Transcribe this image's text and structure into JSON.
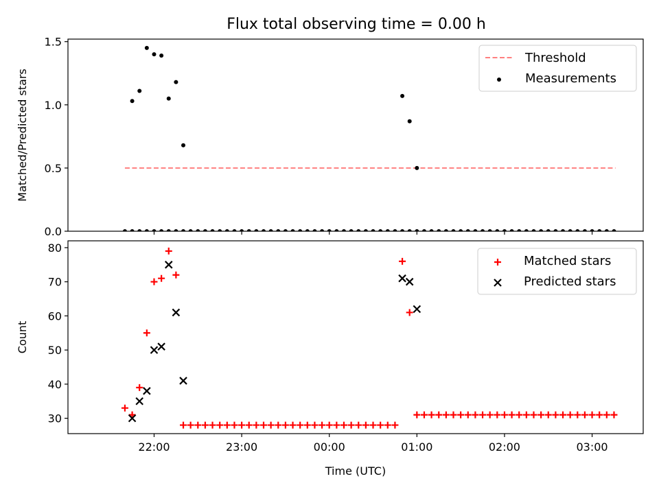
{
  "figure_title": "Flux total observing time = 0.00 h",
  "chart_data": [
    {
      "type": "scatter",
      "title": "Flux total observing time = 0.00 h",
      "xlabel": "",
      "ylabel": "Matched/Predicted stars",
      "ylim": [
        0.0,
        1.52
      ],
      "yticks": [
        "0.0",
        "0.5",
        "1.0",
        "1.5"
      ],
      "legend_position": "upper-right",
      "series": [
        {
          "name": "Threshold",
          "style": "dashed-line",
          "color": "#ff7f7f",
          "x": [
            "21:40",
            "03:16"
          ],
          "y": [
            0.5,
            0.5
          ]
        },
        {
          "name": "Measurements",
          "style": "dot",
          "color": "#000000",
          "x": [
            "21:40",
            "21:45",
            "21:50",
            "21:55",
            "22:00",
            "22:05",
            "22:10",
            "22:15",
            "22:20",
            "22:25",
            "22:30",
            "22:35",
            "22:40",
            "22:45",
            "22:50",
            "22:55",
            "23:00",
            "23:05",
            "23:10",
            "23:15",
            "23:20",
            "23:25",
            "23:30",
            "23:35",
            "23:40",
            "23:45",
            "23:50",
            "23:55",
            "00:00",
            "00:05",
            "00:10",
            "00:15",
            "00:20",
            "00:25",
            "00:30",
            "00:35",
            "00:40",
            "00:45",
            "00:50",
            "00:55",
            "01:00",
            "01:05",
            "01:10",
            "01:15",
            "01:20",
            "01:25",
            "01:30",
            "01:35",
            "01:40",
            "01:45",
            "01:50",
            "01:55",
            "02:00",
            "02:05",
            "02:10",
            "02:15",
            "02:20",
            "02:25",
            "02:30",
            "02:35",
            "02:40",
            "02:45",
            "02:50",
            "02:55",
            "03:00",
            "03:05",
            "03:10",
            "03:15",
            "21:45",
            "21:50",
            "21:55",
            "22:00",
            "22:05",
            "22:10",
            "22:15",
            "22:20",
            "00:50",
            "00:55",
            "01:00"
          ],
          "y": [
            0,
            0,
            0,
            0,
            0,
            0,
            0,
            0,
            0,
            0,
            0,
            0,
            0,
            0,
            0,
            0,
            0,
            0,
            0,
            0,
            0,
            0,
            0,
            0,
            0,
            0,
            0,
            0,
            0,
            0,
            0,
            0,
            0,
            0,
            0,
            0,
            0,
            0,
            0,
            0,
            0,
            0,
            0,
            0,
            0,
            0,
            0,
            0,
            0,
            0,
            0,
            0,
            0,
            0,
            0,
            0,
            0,
            0,
            0,
            0,
            0,
            0,
            0,
            0,
            0,
            0,
            0,
            0,
            1.03,
            1.11,
            1.45,
            1.4,
            1.39,
            1.05,
            1.18,
            0.68,
            1.07,
            0.87,
            0.5
          ]
        }
      ]
    },
    {
      "type": "scatter",
      "title": "",
      "xlabel": "Time (UTC)",
      "ylabel": "Count",
      "ylim": [
        25.5,
        82
      ],
      "yticks": [
        "30",
        "40",
        "50",
        "60",
        "70",
        "80"
      ],
      "xticks": [
        "22:00",
        "23:00",
        "00:00",
        "01:00",
        "02:00",
        "03:00"
      ],
      "legend_position": "upper-right",
      "series": [
        {
          "name": "Matched stars",
          "style": "plus",
          "color": "#ff0000",
          "x": [
            "21:40",
            "21:45",
            "21:50",
            "21:55",
            "22:00",
            "22:05",
            "22:10",
            "22:15",
            "22:20",
            "22:25",
            "22:30",
            "22:35",
            "22:40",
            "22:45",
            "22:50",
            "22:55",
            "23:00",
            "23:05",
            "23:10",
            "23:15",
            "23:20",
            "23:25",
            "23:30",
            "23:35",
            "23:40",
            "23:45",
            "23:50",
            "23:55",
            "00:00",
            "00:05",
            "00:10",
            "00:15",
            "00:20",
            "00:25",
            "00:30",
            "00:35",
            "00:40",
            "00:45",
            "00:50",
            "00:55",
            "01:00",
            "01:05",
            "01:10",
            "01:15",
            "01:20",
            "01:25",
            "01:30",
            "01:35",
            "01:40",
            "01:45",
            "01:50",
            "01:55",
            "02:00",
            "02:05",
            "02:10",
            "02:15",
            "02:20",
            "02:25",
            "02:30",
            "02:35",
            "02:40",
            "02:45",
            "02:50",
            "02:55",
            "03:00",
            "03:05",
            "03:10",
            "03:15"
          ],
          "y": [
            33,
            31,
            39,
            55,
            70,
            71,
            79,
            72,
            28,
            28,
            28,
            28,
            28,
            28,
            28,
            28,
            28,
            28,
            28,
            28,
            28,
            28,
            28,
            28,
            28,
            28,
            28,
            28,
            28,
            28,
            28,
            28,
            28,
            28,
            28,
            28,
            28,
            28,
            76,
            61,
            31,
            31,
            31,
            31,
            31,
            31,
            31,
            31,
            31,
            31,
            31,
            31,
            31,
            31,
            31,
            31,
            31,
            31,
            31,
            31,
            31,
            31,
            31,
            31,
            31,
            31,
            31,
            31
          ]
        },
        {
          "name": "Predicted stars",
          "style": "x",
          "color": "#000000",
          "x": [
            "21:45",
            "21:50",
            "21:55",
            "22:00",
            "22:05",
            "22:10",
            "22:15",
            "22:20",
            "00:50",
            "00:55",
            "01:00"
          ],
          "y": [
            30,
            35,
            38,
            50,
            51,
            75,
            61,
            41,
            71,
            70,
            62
          ]
        }
      ]
    }
  ]
}
